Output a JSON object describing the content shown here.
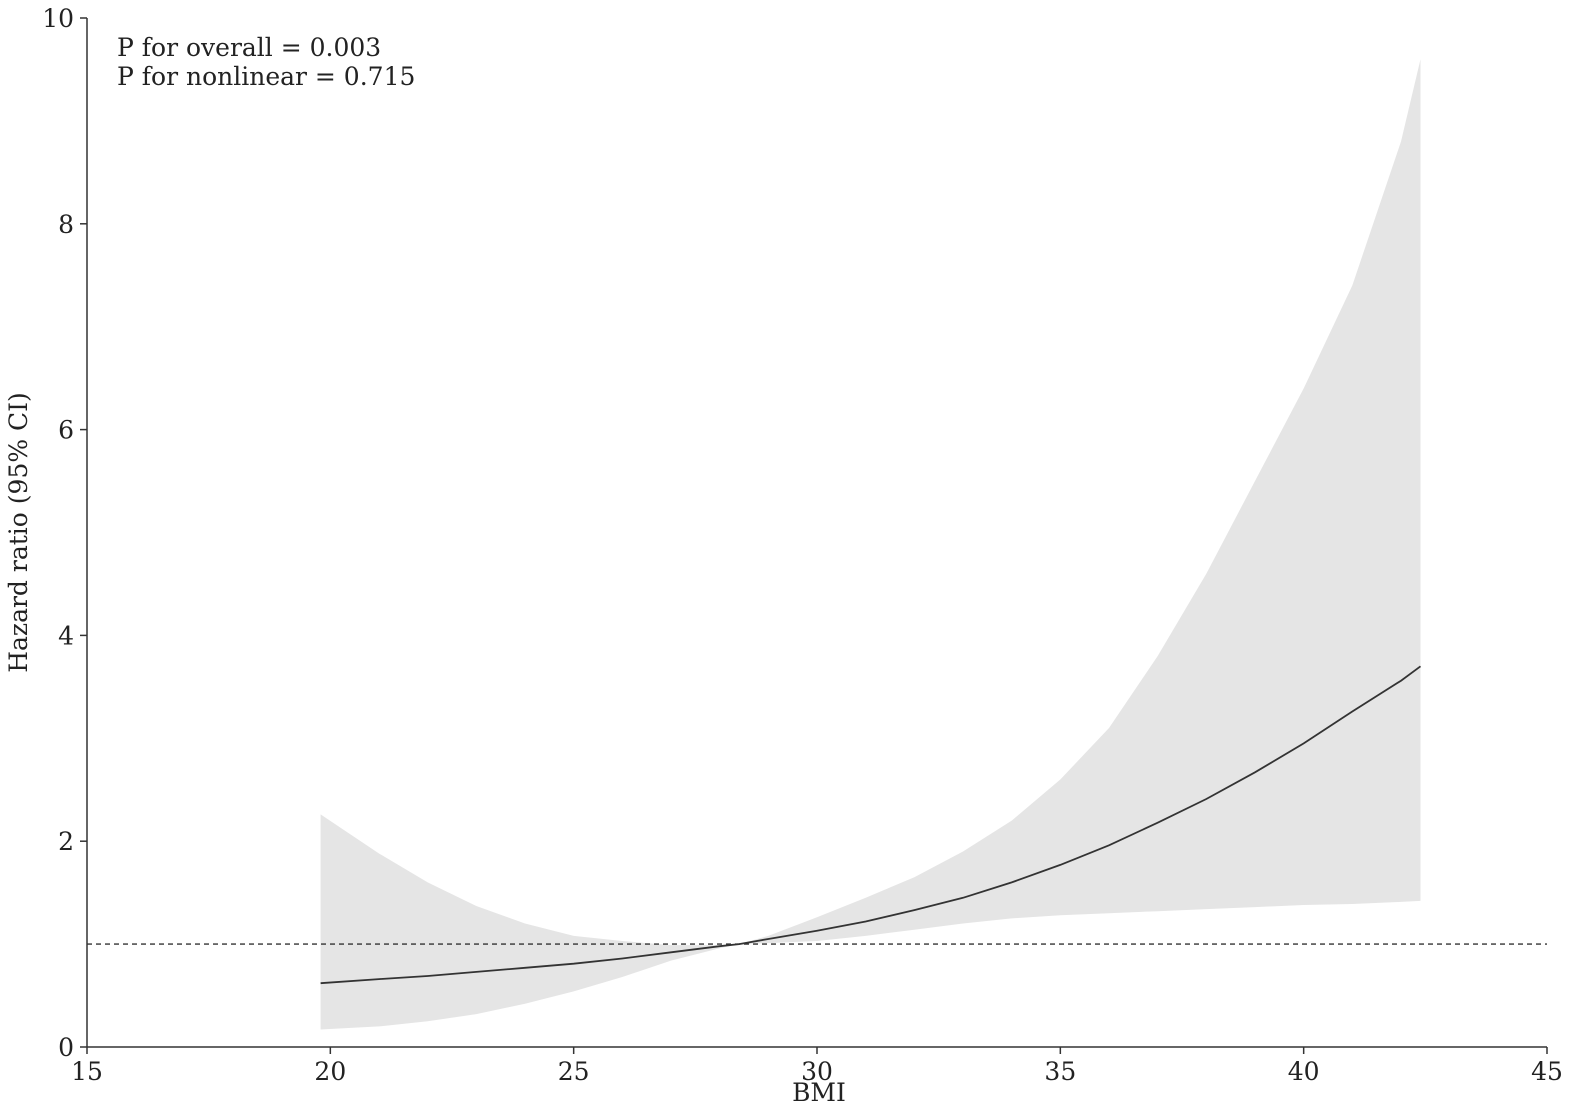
{
  "chart_data": {
    "type": "line",
    "title": "",
    "xlabel": "BMI",
    "ylabel": "Hazard ratio (95% CI)",
    "xlim": [
      15,
      45
    ],
    "ylim": [
      0,
      10
    ],
    "x_ticks": [
      15,
      20,
      25,
      30,
      35,
      40,
      45
    ],
    "y_ticks": [
      0,
      2,
      4,
      6,
      8,
      10
    ],
    "reference_line": {
      "y": 1,
      "style": "dashed"
    },
    "annotations": [
      "P for overall = 0.003",
      "P for nonlinear = 0.715"
    ],
    "grid": false,
    "x": [
      19.8,
      21,
      22,
      23,
      24,
      25,
      26,
      27,
      28,
      28.4,
      29,
      30,
      31,
      32,
      33,
      34,
      35,
      36,
      37,
      38,
      39,
      40,
      41,
      42,
      42.4
    ],
    "series": [
      {
        "values": [
          0.62,
          0.66,
          0.69,
          0.73,
          0.77,
          0.81,
          0.86,
          0.92,
          0.98,
          1.0,
          1.05,
          1.13,
          1.22,
          1.33,
          1.45,
          1.6,
          1.77,
          1.96,
          2.18,
          2.41,
          2.67,
          2.95,
          3.26,
          3.56,
          3.7
        ]
      }
    ],
    "ci": {
      "lower": [
        0.17,
        0.2,
        0.25,
        0.32,
        0.42,
        0.54,
        0.68,
        0.84,
        0.96,
        1.0,
        1.01,
        1.03,
        1.08,
        1.14,
        1.2,
        1.25,
        1.28,
        1.3,
        1.32,
        1.34,
        1.36,
        1.38,
        1.39,
        1.41,
        1.42
      ],
      "upper": [
        2.26,
        1.88,
        1.6,
        1.37,
        1.2,
        1.08,
        1.03,
        0.99,
        0.99,
        1.0,
        1.08,
        1.26,
        1.45,
        1.65,
        1.9,
        2.2,
        2.6,
        3.1,
        3.8,
        4.6,
        5.5,
        6.4,
        7.4,
        8.8,
        9.6
      ]
    },
    "colors": {
      "line": "#333333",
      "band": "#e5e5e5",
      "axis": "#333333",
      "reference": "#333333"
    }
  }
}
